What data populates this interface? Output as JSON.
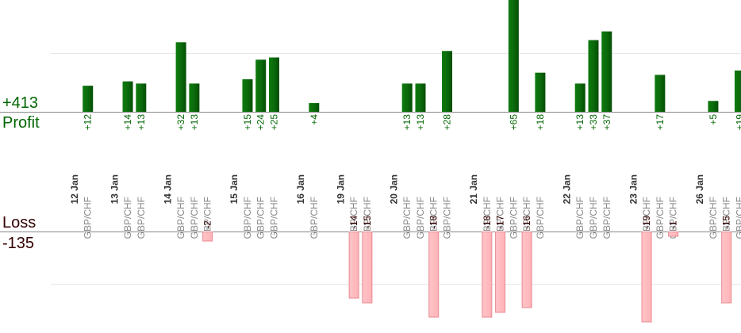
{
  "summary": {
    "profit_total": "+413",
    "profit_label": "Profit",
    "loss_label": "Loss",
    "loss_total": "-135"
  },
  "colors": {
    "profit_bar": "#0b6b0b",
    "profit_text": "#006600",
    "loss_bar": "#ffb3b8",
    "loss_bar_border": "#e88a90",
    "loss_text": "#330000",
    "date_text": "#333333",
    "pair_text": "#888888",
    "grid": "#e8e8e8",
    "axis": "#888888"
  },
  "chart_data": {
    "type": "bar",
    "profit_ylim": [
      0,
      35
    ],
    "loss_ylim": [
      0,
      24
    ],
    "dates": [
      {
        "label": "12 Jan",
        "slot": 5
      },
      {
        "label": "13 Jan",
        "slot": 8
      },
      {
        "label": "14 Jan",
        "slot": 12
      },
      {
        "label": "15 Jan",
        "slot": 17
      },
      {
        "label": "16 Jan",
        "slot": 22
      },
      {
        "label": "19 Jan",
        "slot": 25
      },
      {
        "label": "20 Jan",
        "slot": 29
      },
      {
        "label": "21 Jan",
        "slot": 35
      },
      {
        "label": "22 Jan",
        "slot": 42
      },
      {
        "label": "23 Jan",
        "slot": 47
      },
      {
        "label": "26 Jan",
        "slot": 52
      }
    ],
    "trades": [
      {
        "slot": 6,
        "pair": "GBP/CHF",
        "value": 12,
        "label": "+12"
      },
      {
        "slot": 9,
        "pair": "GBP/CHF",
        "value": 14,
        "label": "+14"
      },
      {
        "slot": 10,
        "pair": "GBP/CHF",
        "value": 13,
        "label": "+13"
      },
      {
        "slot": 13,
        "pair": "GBP/CHF",
        "value": 32,
        "label": "+32"
      },
      {
        "slot": 14,
        "pair": "GBP/CHF",
        "value": 13,
        "label": "+13"
      },
      {
        "slot": 15,
        "pair": "GBP/CHF",
        "value": -2,
        "label": "-2"
      },
      {
        "slot": 18,
        "pair": "GBP/CHF",
        "value": 15,
        "label": "+15"
      },
      {
        "slot": 19,
        "pair": "GBP/CHF",
        "value": 24,
        "label": "+24"
      },
      {
        "slot": 20,
        "pair": "GBP/CHF",
        "value": 25,
        "label": "+25"
      },
      {
        "slot": 23,
        "pair": "GBP/CHF",
        "value": 4,
        "label": "+4"
      },
      {
        "slot": 26,
        "pair": "GBP/CHF",
        "value": -14,
        "label": "-14"
      },
      {
        "slot": 27,
        "pair": "GBP/CHF",
        "value": -15,
        "label": "-15"
      },
      {
        "slot": 30,
        "pair": "GBP/CHF",
        "value": 13,
        "label": "+13"
      },
      {
        "slot": 31,
        "pair": "GBP/CHF",
        "value": 13,
        "label": "+13"
      },
      {
        "slot": 32,
        "pair": "GBP/CHF",
        "value": -18,
        "label": "-18"
      },
      {
        "slot": 33,
        "pair": "GBP/CHF",
        "value": 28,
        "label": "+28"
      },
      {
        "slot": 36,
        "pair": "GBP/CHF",
        "value": -18,
        "label": "-18"
      },
      {
        "slot": 37,
        "pair": "GBP/CHF",
        "value": -17,
        "label": "-17"
      },
      {
        "slot": 38,
        "pair": "GBP/CHF",
        "value": 65,
        "label": "+65"
      },
      {
        "slot": 39,
        "pair": "GBP/CHF",
        "value": -16,
        "label": "-16"
      },
      {
        "slot": 40,
        "pair": "GBP/CHF",
        "value": 18,
        "label": "+18"
      },
      {
        "slot": 43,
        "pair": "GBP/CHF",
        "value": 13,
        "label": "+13"
      },
      {
        "slot": 44,
        "pair": "GBP/CHF",
        "value": 33,
        "label": "+33"
      },
      {
        "slot": 45,
        "pair": "GBP/CHF",
        "value": 37,
        "label": "+37"
      },
      {
        "slot": 48,
        "pair": "GBP/CHF",
        "value": -19,
        "label": "-19"
      },
      {
        "slot": 49,
        "pair": "GBP/CHF",
        "value": 17,
        "label": "+17"
      },
      {
        "slot": 50,
        "pair": "GBP/CHF",
        "value": -1,
        "label": "-1"
      },
      {
        "slot": 53,
        "pair": "GBP/CHF",
        "value": 5,
        "label": "+5"
      },
      {
        "slot": 54,
        "pair": "GBP/CHF",
        "value": -15,
        "label": "-15"
      },
      {
        "slot": 55,
        "pair": "GBP/CHF",
        "value": 19,
        "label": "+19"
      }
    ]
  }
}
